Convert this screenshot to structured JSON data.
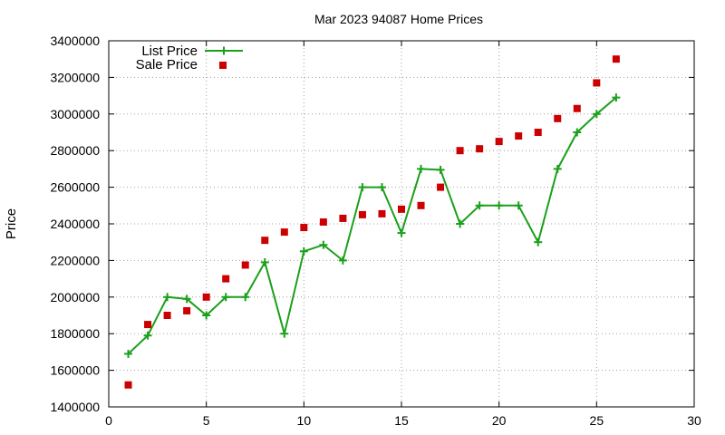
{
  "chart_data": {
    "type": "line",
    "title": "Mar 2023 94087 Home Prices",
    "xlabel": "",
    "ylabel": "Price",
    "xlim": [
      0,
      30
    ],
    "ylim": [
      1400000,
      3400000
    ],
    "xticks": [
      0,
      5,
      10,
      15,
      20,
      25,
      30
    ],
    "yticks": [
      1400000,
      1600000,
      1800000,
      2000000,
      2200000,
      2400000,
      2600000,
      2800000,
      3000000,
      3200000,
      3400000
    ],
    "grid": true,
    "legend_position": "top-left",
    "x": [
      1,
      2,
      3,
      4,
      5,
      6,
      7,
      8,
      9,
      10,
      11,
      12,
      13,
      14,
      15,
      16,
      17,
      18,
      19,
      20,
      21,
      22,
      23,
      24,
      25,
      26
    ],
    "series": [
      {
        "name": "List Price",
        "style": "line-plus",
        "color": "#1aa01a",
        "values": [
          1690000,
          1790000,
          2000000,
          1990000,
          1900000,
          2000000,
          2000000,
          2190000,
          1800000,
          2250000,
          2285000,
          2200000,
          2600000,
          2600000,
          2350000,
          2700000,
          2695000,
          2400000,
          2500000,
          2500000,
          2500000,
          2300000,
          2700000,
          2900000,
          3000000,
          3090000
        ]
      },
      {
        "name": "Sale Price",
        "style": "square",
        "color": "#cc0000",
        "values": [
          1520000,
          1850000,
          1900000,
          1925000,
          2000000,
          2100000,
          2175000,
          2310000,
          2355000,
          2380000,
          2410000,
          2430000,
          2450000,
          2455000,
          2480000,
          2500000,
          2600000,
          2800000,
          2810000,
          2850000,
          2880000,
          2900000,
          2975000,
          3030000,
          3170000,
          3300000
        ]
      }
    ]
  }
}
